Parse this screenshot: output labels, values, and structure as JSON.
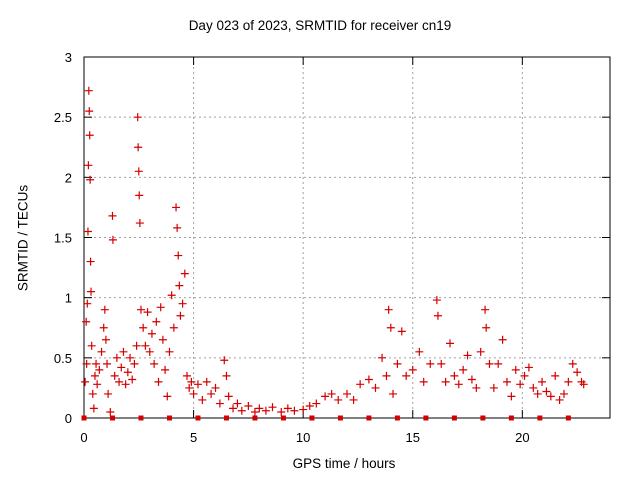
{
  "chart_data": {
    "type": "scatter",
    "title": "Day 023 of 2023, SRMTID for receiver cn19",
    "xlabel": "GPS time / hours",
    "ylabel": "SRMTID / TECUs",
    "xlim": [
      0,
      24
    ],
    "ylim": [
      0,
      3
    ],
    "xticks": [
      0,
      5,
      10,
      15,
      20
    ],
    "xtick_labels": [
      "0",
      "5",
      "10",
      "15",
      "20"
    ],
    "yticks": [
      0,
      0.5,
      1,
      1.5,
      2,
      2.5,
      3
    ],
    "ytick_labels": [
      "0",
      "0.5",
      "1",
      "1.5",
      "2",
      "2.5",
      "3"
    ],
    "grid": true,
    "marker": "+",
    "series": [
      {
        "name": "cn19",
        "color": "#d40000",
        "points": [
          [
            0.05,
            0.3
          ],
          [
            0.1,
            0.8
          ],
          [
            0.12,
            0.45
          ],
          [
            0.15,
            0.95
          ],
          [
            0.18,
            1.55
          ],
          [
            0.2,
            2.1
          ],
          [
            0.22,
            2.72
          ],
          [
            0.24,
            2.55
          ],
          [
            0.26,
            2.35
          ],
          [
            0.28,
            1.98
          ],
          [
            0.3,
            1.3
          ],
          [
            0.32,
            1.05
          ],
          [
            0.35,
            0.6
          ],
          [
            0.4,
            0.2
          ],
          [
            0.45,
            0.08
          ],
          [
            0.5,
            0.35
          ],
          [
            0.55,
            0.45
          ],
          [
            0.6,
            0.28
          ],
          [
            0.7,
            0.4
          ],
          [
            0.8,
            0.55
          ],
          [
            0.9,
            0.75
          ],
          [
            0.95,
            0.9
          ],
          [
            1.0,
            0.65
          ],
          [
            1.05,
            0.45
          ],
          [
            1.1,
            0.2
          ],
          [
            1.2,
            0.05
          ],
          [
            1.3,
            1.68
          ],
          [
            1.32,
            1.48
          ],
          [
            1.4,
            0.35
          ],
          [
            1.5,
            0.5
          ],
          [
            1.6,
            0.3
          ],
          [
            1.7,
            0.42
          ],
          [
            1.8,
            0.55
          ],
          [
            1.9,
            0.28
          ],
          [
            2.0,
            0.38
          ],
          [
            2.1,
            0.5
          ],
          [
            2.2,
            0.32
          ],
          [
            2.3,
            0.45
          ],
          [
            2.4,
            0.6
          ],
          [
            2.45,
            2.5
          ],
          [
            2.47,
            2.25
          ],
          [
            2.5,
            2.05
          ],
          [
            2.52,
            1.85
          ],
          [
            2.55,
            1.62
          ],
          [
            2.6,
            0.9
          ],
          [
            2.7,
            0.75
          ],
          [
            2.8,
            0.6
          ],
          [
            2.9,
            0.88
          ],
          [
            3.0,
            0.55
          ],
          [
            3.1,
            0.7
          ],
          [
            3.2,
            0.45
          ],
          [
            3.3,
            0.8
          ],
          [
            3.4,
            0.3
          ],
          [
            3.5,
            0.92
          ],
          [
            3.6,
            0.65
          ],
          [
            3.7,
            0.4
          ],
          [
            3.8,
            0.18
          ],
          [
            3.9,
            0.55
          ],
          [
            4.0,
            1.02
          ],
          [
            4.1,
            0.75
          ],
          [
            4.2,
            1.75
          ],
          [
            4.25,
            1.58
          ],
          [
            4.3,
            1.35
          ],
          [
            4.35,
            1.1
          ],
          [
            4.4,
            0.85
          ],
          [
            4.5,
            0.95
          ],
          [
            4.6,
            1.2
          ],
          [
            4.7,
            0.35
          ],
          [
            4.8,
            0.25
          ],
          [
            4.9,
            0.3
          ],
          [
            5.0,
            0.2
          ],
          [
            5.2,
            0.28
          ],
          [
            5.4,
            0.15
          ],
          [
            5.6,
            0.3
          ],
          [
            5.8,
            0.2
          ],
          [
            6.0,
            0.25
          ],
          [
            6.2,
            0.12
          ],
          [
            6.4,
            0.48
          ],
          [
            6.5,
            0.35
          ],
          [
            6.6,
            0.18
          ],
          [
            6.8,
            0.08
          ],
          [
            7.0,
            0.12
          ],
          [
            7.2,
            0.06
          ],
          [
            7.5,
            0.1
          ],
          [
            7.8,
            0.05
          ],
          [
            8.0,
            0.08
          ],
          [
            8.3,
            0.06
          ],
          [
            8.6,
            0.09
          ],
          [
            9.0,
            0.05
          ],
          [
            9.3,
            0.08
          ],
          [
            9.6,
            0.06
          ],
          [
            10.0,
            0.07
          ],
          [
            10.3,
            0.1
          ],
          [
            10.6,
            0.12
          ],
          [
            11.0,
            0.18
          ],
          [
            11.3,
            0.2
          ],
          [
            11.6,
            0.15
          ],
          [
            12.0,
            0.2
          ],
          [
            12.3,
            0.15
          ],
          [
            12.6,
            0.28
          ],
          [
            13.0,
            0.32
          ],
          [
            13.3,
            0.25
          ],
          [
            13.6,
            0.5
          ],
          [
            13.8,
            0.35
          ],
          [
            13.9,
            0.9
          ],
          [
            14.0,
            0.75
          ],
          [
            14.1,
            0.2
          ],
          [
            14.3,
            0.45
          ],
          [
            14.5,
            0.72
          ],
          [
            14.7,
            0.35
          ],
          [
            15.0,
            0.4
          ],
          [
            15.3,
            0.55
          ],
          [
            15.5,
            0.3
          ],
          [
            15.8,
            0.45
          ],
          [
            16.1,
            0.98
          ],
          [
            16.15,
            0.85
          ],
          [
            16.3,
            0.45
          ],
          [
            16.5,
            0.3
          ],
          [
            16.7,
            0.62
          ],
          [
            16.9,
            0.35
          ],
          [
            17.1,
            0.28
          ],
          [
            17.3,
            0.4
          ],
          [
            17.5,
            0.52
          ],
          [
            17.7,
            0.32
          ],
          [
            17.9,
            0.25
          ],
          [
            18.1,
            0.55
          ],
          [
            18.3,
            0.9
          ],
          [
            18.35,
            0.75
          ],
          [
            18.5,
            0.45
          ],
          [
            18.7,
            0.25
          ],
          [
            18.9,
            0.45
          ],
          [
            19.1,
            0.65
          ],
          [
            19.3,
            0.3
          ],
          [
            19.5,
            0.18
          ],
          [
            19.7,
            0.4
          ],
          [
            19.9,
            0.28
          ],
          [
            20.1,
            0.35
          ],
          [
            20.3,
            0.42
          ],
          [
            20.5,
            0.25
          ],
          [
            20.7,
            0.2
          ],
          [
            20.9,
            0.3
          ],
          [
            21.1,
            0.22
          ],
          [
            21.3,
            0.18
          ],
          [
            21.5,
            0.35
          ],
          [
            21.7,
            0.15
          ],
          [
            21.9,
            0.2
          ],
          [
            22.1,
            0.3
          ],
          [
            22.3,
            0.45
          ],
          [
            22.5,
            0.38
          ],
          [
            22.7,
            0.3
          ],
          [
            22.8,
            0.28
          ]
        ]
      }
    ],
    "baseline_markers_x": [
      0.0,
      1.3,
      2.6,
      3.9,
      5.2,
      6.5,
      7.8,
      9.1,
      10.4,
      11.7,
      13.0,
      14.3,
      15.6,
      16.9,
      18.2,
      19.5,
      20.8,
      22.1
    ]
  }
}
